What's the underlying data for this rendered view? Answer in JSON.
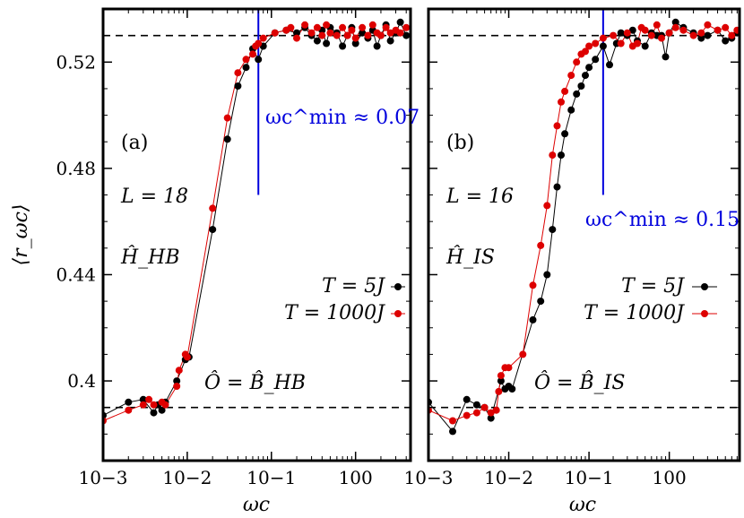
{
  "y_axis_label": "⟨r_ωc⟩",
  "chart_data": [
    {
      "type": "line",
      "panel": "(a)",
      "xlabel": "ωc",
      "ylabel": "⟨r_ωc⟩",
      "xscale": "log",
      "xlim": [
        0.001,
        4.5
      ],
      "ylim": [
        0.37,
        0.54
      ],
      "xticks": [
        {
          "value": 0.001,
          "label": "10−3"
        },
        {
          "value": 0.01,
          "label": "10−2"
        },
        {
          "value": 0.1,
          "label": "10−1"
        },
        {
          "value": 1,
          "label": "100"
        }
      ],
      "yticks": [
        {
          "value": 0.4,
          "label": "0.4"
        },
        {
          "value": 0.44,
          "label": "0.44"
        },
        {
          "value": 0.48,
          "label": "0.48"
        },
        {
          "value": 0.52,
          "label": "0.52"
        }
      ],
      "annotations": {
        "panel_label": "(a)",
        "size_label": "L = 18",
        "hamiltonian_label": "Ĥ_HB",
        "operator_label": "Ô = B̂_HB",
        "omega_min_label": "ωc^min ≈ 0.07"
      },
      "reference_lines": [
        {
          "orientation": "horizontal",
          "y": 0.53,
          "style": "dashed",
          "color": "#000000"
        },
        {
          "orientation": "horizontal",
          "y": 0.39,
          "style": "dashed",
          "color": "#000000"
        },
        {
          "orientation": "vertical",
          "x": 0.07,
          "y_range": [
            0.47,
            0.54
          ],
          "color": "#0000dd"
        }
      ],
      "series": [
        {
          "name": "T = 5J",
          "color": "#000000",
          "x": [
            0.001,
            0.002,
            0.003,
            0.004,
            0.0045,
            0.005,
            0.0055,
            0.0075,
            0.0095,
            0.0105,
            0.02,
            0.03,
            0.04,
            0.05,
            0.06,
            0.07,
            0.08,
            0.11,
            0.15,
            0.2,
            0.25,
            0.3,
            0.35,
            0.4,
            0.45,
            0.5,
            0.6,
            0.7,
            0.8,
            0.9,
            1.0,
            1.2,
            1.4,
            1.6,
            1.8,
            2.0,
            2.3,
            2.6,
            3.0,
            3.4,
            4.0
          ],
          "y": [
            0.387,
            0.392,
            0.393,
            0.388,
            0.391,
            0.389,
            0.392,
            0.4,
            0.408,
            0.409,
            0.457,
            0.491,
            0.511,
            0.518,
            0.525,
            0.521,
            0.526,
            0.531,
            0.532,
            0.531,
            0.533,
            0.53,
            0.528,
            0.532,
            0.527,
            0.533,
            0.531,
            0.526,
            0.53,
            0.533,
            0.527,
            0.531,
            0.529,
            0.532,
            0.526,
            0.53,
            0.534,
            0.528,
            0.531,
            0.535,
            0.53
          ]
        },
        {
          "name": "T = 1000J",
          "color": "#dd0000",
          "x": [
            0.001,
            0.002,
            0.003,
            0.0035,
            0.004,
            0.005,
            0.0055,
            0.0075,
            0.008,
            0.0095,
            0.01,
            0.02,
            0.03,
            0.04,
            0.05,
            0.06,
            0.065,
            0.07,
            0.08,
            0.11,
            0.15,
            0.17,
            0.2,
            0.25,
            0.3,
            0.35,
            0.4,
            0.45,
            0.5,
            0.6,
            0.7,
            0.8,
            0.9,
            1.0,
            1.2,
            1.4,
            1.6,
            1.8,
            2.0,
            2.3,
            2.6,
            3.0,
            3.4,
            4.0
          ],
          "y": [
            0.385,
            0.389,
            0.391,
            0.393,
            0.391,
            0.392,
            0.391,
            0.398,
            0.404,
            0.41,
            0.409,
            0.465,
            0.499,
            0.516,
            0.521,
            0.523,
            0.526,
            0.527,
            0.529,
            0.531,
            0.532,
            0.533,
            0.529,
            0.534,
            0.531,
            0.533,
            0.53,
            0.534,
            0.531,
            0.53,
            0.533,
            0.53,
            0.532,
            0.529,
            0.533,
            0.53,
            0.534,
            0.531,
            0.53,
            0.533,
            0.531,
            0.532,
            0.531,
            0.533
          ]
        }
      ]
    },
    {
      "type": "line",
      "panel": "(b)",
      "xlabel": "ωc",
      "ylabel": "⟨r_ωc⟩",
      "xscale": "log",
      "xlim": [
        0.001,
        7.5
      ],
      "ylim": [
        0.37,
        0.54
      ],
      "xticks": [
        {
          "value": 0.001,
          "label": "10−3"
        },
        {
          "value": 0.01,
          "label": "10−2"
        },
        {
          "value": 0.1,
          "label": "10−1"
        },
        {
          "value": 1,
          "label": "100"
        }
      ],
      "yticks": [
        {
          "value": 0.4
        },
        {
          "value": 0.44
        },
        {
          "value": 0.48
        },
        {
          "value": 0.52
        }
      ],
      "annotations": {
        "panel_label": "(b)",
        "size_label": "L = 16",
        "hamiltonian_label": "Ĥ_IS",
        "operator_label": "Ô = B̂_IS",
        "omega_min_label": "ωc^min ≈ 0.15"
      },
      "reference_lines": [
        {
          "orientation": "horizontal",
          "y": 0.53,
          "style": "dashed",
          "color": "#000000"
        },
        {
          "orientation": "horizontal",
          "y": 0.39,
          "style": "dashed",
          "color": "#000000"
        },
        {
          "orientation": "vertical",
          "x": 0.15,
          "y_range": [
            0.47,
            0.54
          ],
          "color": "#0000dd"
        }
      ],
      "series": [
        {
          "name": "T = 5J",
          "color": "#000000",
          "x": [
            0.001,
            0.002,
            0.003,
            0.004,
            0.005,
            0.006,
            0.008,
            0.009,
            0.01,
            0.011,
            0.02,
            0.025,
            0.03,
            0.035,
            0.04,
            0.045,
            0.05,
            0.06,
            0.07,
            0.08,
            0.09,
            0.1,
            0.12,
            0.15,
            0.18,
            0.22,
            0.25,
            0.3,
            0.35,
            0.4,
            0.5,
            0.6,
            0.7,
            0.8,
            0.9,
            1.0,
            1.2,
            1.5,
            2.0,
            2.5,
            3.0,
            4.0,
            5.0,
            6.0,
            7.0
          ],
          "y": [
            0.392,
            0.381,
            0.393,
            0.391,
            0.39,
            0.386,
            0.4,
            0.397,
            0.398,
            0.397,
            0.423,
            0.43,
            0.44,
            0.457,
            0.473,
            0.485,
            0.493,
            0.502,
            0.508,
            0.511,
            0.515,
            0.518,
            0.521,
            0.526,
            0.519,
            0.527,
            0.531,
            0.53,
            0.532,
            0.528,
            0.526,
            0.531,
            0.53,
            0.53,
            0.522,
            0.531,
            0.535,
            0.533,
            0.531,
            0.529,
            0.53,
            0.532,
            0.528,
            0.529,
            0.531
          ]
        },
        {
          "name": "T = 1000J",
          "color": "#dd0000",
          "x": [
            0.001,
            0.002,
            0.003,
            0.004,
            0.005,
            0.006,
            0.007,
            0.0075,
            0.008,
            0.009,
            0.01,
            0.015,
            0.02,
            0.025,
            0.03,
            0.035,
            0.04,
            0.045,
            0.05,
            0.06,
            0.07,
            0.08,
            0.09,
            0.1,
            0.12,
            0.15,
            0.2,
            0.25,
            0.3,
            0.35,
            0.4,
            0.45,
            0.5,
            0.6,
            0.7,
            0.8,
            1.0,
            1.2,
            1.5,
            2.0,
            2.5,
            3.0,
            4.0,
            5.0,
            6.0,
            7.0
          ],
          "y": [
            0.389,
            0.385,
            0.387,
            0.388,
            0.39,
            0.388,
            0.389,
            0.396,
            0.402,
            0.405,
            0.405,
            0.41,
            0.436,
            0.451,
            0.466,
            0.485,
            0.496,
            0.505,
            0.509,
            0.515,
            0.52,
            0.523,
            0.524,
            0.526,
            0.527,
            0.529,
            0.53,
            0.527,
            0.531,
            0.526,
            0.527,
            0.533,
            0.532,
            0.53,
            0.534,
            0.529,
            0.531,
            0.533,
            0.532,
            0.53,
            0.531,
            0.534,
            0.532,
            0.533,
            0.53,
            0.532
          ]
        }
      ]
    }
  ]
}
